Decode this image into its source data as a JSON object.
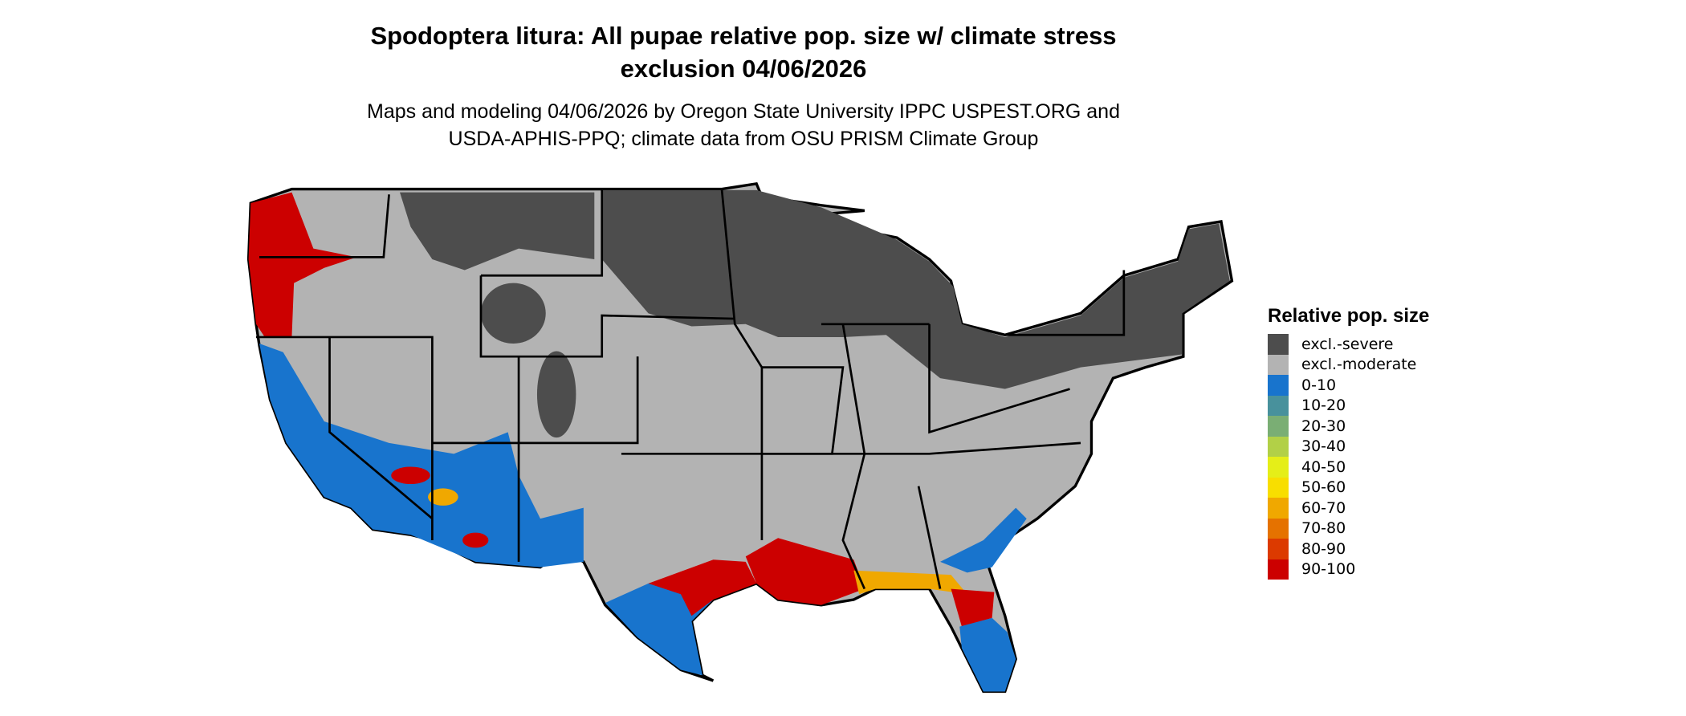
{
  "title_line1": "Spodoptera litura: All pupae relative pop. size w/ climate stress",
  "title_line2": "exclusion 04/06/2026",
  "subtitle_line1": "Maps and modeling 04/06/2026 by Oregon State University IPPC USPEST.ORG and",
  "subtitle_line2": "USDA-APHIS-PPQ; climate data from OSU PRISM Climate Group",
  "legend": {
    "title": "Relative pop. size",
    "items": [
      {
        "label": "excl.-severe",
        "color": "#4d4d4d"
      },
      {
        "label": "excl.-moderate",
        "color": "#b3b3b3"
      },
      {
        "label": "0-10",
        "color": "#1874cd"
      },
      {
        "label": "10-20",
        "color": "#48919c"
      },
      {
        "label": "20-30",
        "color": "#7aae74"
      },
      {
        "label": "30-40",
        "color": "#b2d047"
      },
      {
        "label": "40-50",
        "color": "#e5ee18"
      },
      {
        "label": "50-60",
        "color": "#f8de00"
      },
      {
        "label": "60-70",
        "color": "#f0a800"
      },
      {
        "label": "70-80",
        "color": "#e57200"
      },
      {
        "label": "80-90",
        "color": "#dc3a00"
      },
      {
        "label": "90-100",
        "color": "#cc0000"
      }
    ]
  },
  "chart_data": {
    "type": "map",
    "region": "Contiguous United States",
    "legend_placement": "right"
  }
}
